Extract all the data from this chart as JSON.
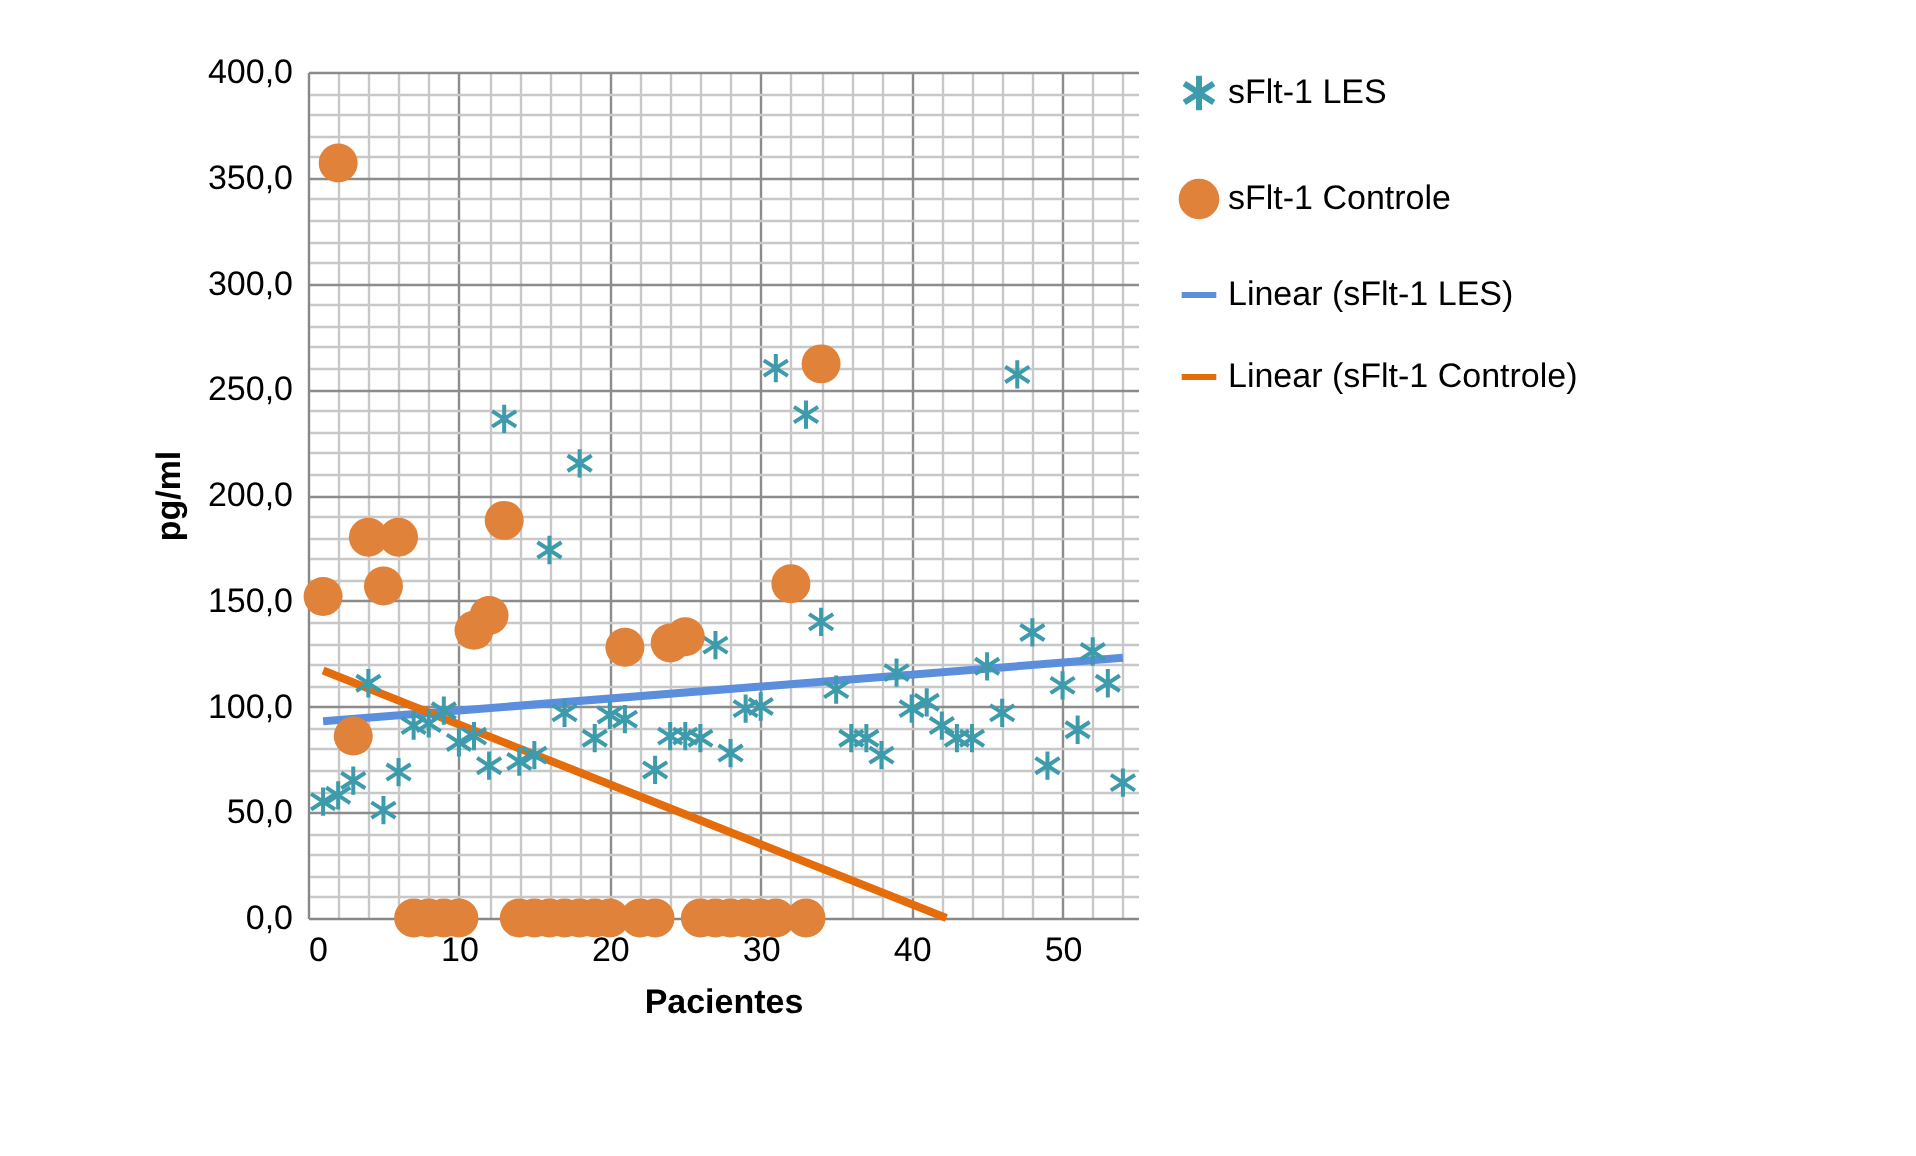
{
  "chart_data": {
    "type": "scatter",
    "xlabel": "Pacientes",
    "ylabel": "pg/ml",
    "x": [
      1,
      2,
      3,
      4,
      5,
      6,
      7,
      8,
      9,
      10,
      11,
      12,
      13,
      14,
      15,
      16,
      17,
      18,
      19,
      20,
      21,
      22,
      23,
      24,
      25,
      26,
      27,
      28,
      29,
      30,
      31,
      32,
      33,
      34,
      35,
      36,
      37,
      38,
      39,
      40,
      41,
      42,
      43,
      44,
      45,
      46,
      47,
      48,
      49,
      50,
      51,
      52,
      53,
      54
    ],
    "series": [
      {
        "name": "sFlt-1 LES",
        "color": "#3d9bab",
        "marker": "cross",
        "values": [
          55,
          58,
          65,
          111,
          51,
          69,
          91,
          92,
          98,
          83,
          86,
          72,
          236,
          74,
          77,
          174,
          97,
          215,
          85,
          96,
          94,
          null,
          70,
          86,
          86,
          85,
          129,
          78,
          99,
          100,
          260,
          null,
          238,
          140,
          108,
          85,
          85,
          77,
          116,
          99,
          102,
          91,
          85,
          85,
          119,
          97,
          257,
          135,
          72,
          110,
          89,
          126,
          111,
          64
        ]
      },
      {
        "name": "sFlt-1 Controle",
        "color": "#e0823a",
        "marker": "circle",
        "x": [
          1,
          2,
          3,
          4,
          5,
          6,
          7,
          8,
          9,
          10,
          11,
          12,
          13,
          14,
          15,
          16,
          17,
          18,
          19,
          20,
          21,
          22,
          23,
          24,
          25,
          26,
          27,
          28,
          29,
          30,
          31,
          32,
          33,
          34
        ],
        "values": [
          152,
          357,
          86,
          180,
          157,
          180,
          0,
          0,
          0,
          0,
          136,
          143,
          188,
          0,
          0,
          0,
          0,
          0,
          0,
          0,
          128,
          0,
          0,
          130,
          133,
          0,
          0,
          0,
          0,
          0,
          0,
          158,
          0,
          262
        ]
      },
      {
        "name": "Linear (sFlt-1 LES)",
        "type": "line",
        "color": "#5b8edc",
        "x": [
          1,
          54
        ],
        "values": [
          93,
          123
        ]
      },
      {
        "name": "Linear (sFlt-1 Controle)",
        "type": "line",
        "color": "#e46c0a",
        "x": [
          1,
          42.3
        ],
        "values": [
          117,
          0
        ]
      }
    ],
    "xlim": [
      0,
      55
    ],
    "xticks": [
      0,
      {
        "value": 2,
        "label": null
      },
      {
        "value": 4,
        "label": null
      },
      {
        "value": 6,
        "label": null
      },
      {
        "value": 8,
        "label": null
      },
      10,
      {
        "value": 12,
        "label": null
      },
      {
        "value": 14,
        "label": null
      },
      {
        "value": 16,
        "label": null
      },
      {
        "value": 18,
        "label": null
      },
      20,
      {
        "value": 22,
        "label": null
      },
      {
        "value": 24,
        "label": null
      },
      {
        "value": 26,
        "label": null
      },
      {
        "value": 28,
        "label": null
      },
      30,
      {
        "value": 32,
        "label": null
      },
      {
        "value": 34,
        "label": null
      },
      {
        "value": 36,
        "label": null
      },
      {
        "value": 38,
        "label": null
      },
      40,
      {
        "value": 42,
        "label": null
      },
      {
        "value": 44,
        "label": null
      },
      {
        "value": 46,
        "label": null
      },
      {
        "value": 48,
        "label": null
      },
      50,
      {
        "value": 52,
        "label": null
      },
      {
        "value": 54,
        "label": null
      }
    ],
    "ylim": [
      0,
      400
    ],
    "yticks": [
      {
        "value": 0,
        "label": "0,0"
      },
      {
        "value": 10,
        "label": null
      },
      {
        "value": 20,
        "label": null
      },
      {
        "value": 30,
        "label": null
      },
      {
        "value": 40,
        "label": null
      },
      {
        "value": 50,
        "label": "50,0"
      },
      {
        "value": 60,
        "label": null
      },
      {
        "value": 70,
        "label": null
      },
      {
        "value": 80,
        "label": null
      },
      {
        "value": 90,
        "label": null
      },
      {
        "value": 100,
        "label": "100,0"
      },
      {
        "value": 110,
        "label": null
      },
      {
        "value": 120,
        "label": null
      },
      {
        "value": 130,
        "label": null
      },
      {
        "value": 140,
        "label": null
      },
      {
        "value": 150,
        "label": "150,0"
      },
      {
        "value": 160,
        "label": null
      },
      {
        "value": 170,
        "label": null
      },
      {
        "value": 180,
        "label": null
      },
      {
        "value": 190,
        "label": null
      },
      {
        "value": 200,
        "label": "200,0"
      },
      {
        "value": 210,
        "label": null
      },
      {
        "value": 220,
        "label": null
      },
      {
        "value": 230,
        "label": null
      },
      {
        "value": 240,
        "label": null
      },
      {
        "value": 250,
        "label": "250,0"
      },
      {
        "value": 260,
        "label": null
      },
      {
        "value": 270,
        "label": null
      },
      {
        "value": 280,
        "label": null
      },
      {
        "value": 290,
        "label": null
      },
      {
        "value": 300,
        "label": "300,0"
      },
      {
        "value": 310,
        "label": null
      },
      {
        "value": 320,
        "label": null
      },
      {
        "value": 330,
        "label": null
      },
      {
        "value": 340,
        "label": null
      },
      {
        "value": 350,
        "label": "350,0"
      },
      {
        "value": 360,
        "label": null
      },
      {
        "value": 370,
        "label": null
      },
      {
        "value": 380,
        "label": null
      },
      {
        "value": 390,
        "label": null
      },
      {
        "value": 400,
        "label": "400,0"
      }
    ],
    "grid": true,
    "legend": "right"
  }
}
